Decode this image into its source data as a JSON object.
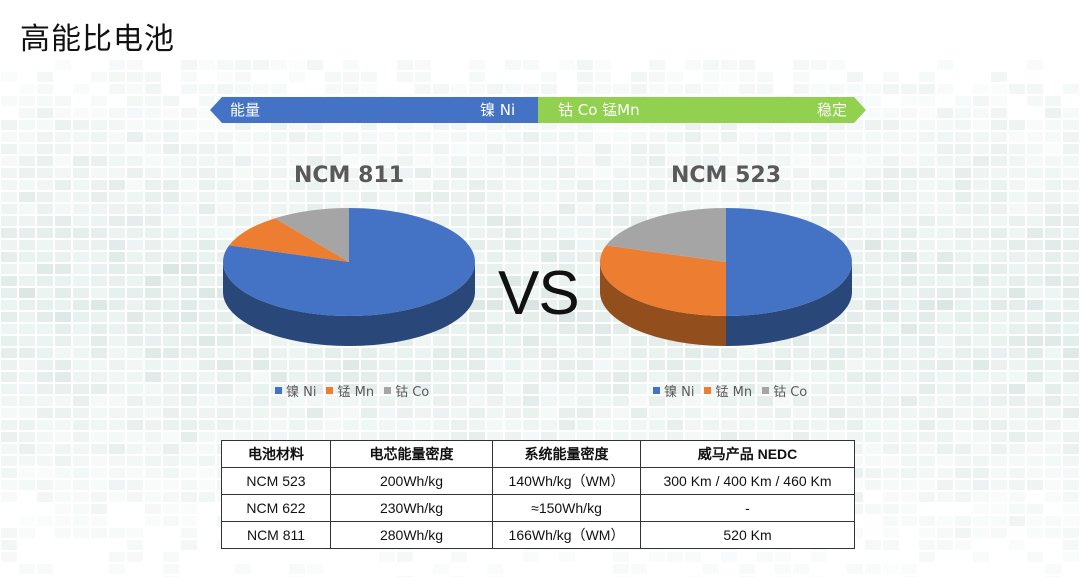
{
  "slide": {
    "title": "高能比电池"
  },
  "arrow": {
    "left_label": "能量",
    "nickel_label": "镍 Ni",
    "middle_label": "钴 Co 锰Mn",
    "right_label": "稳定",
    "blue": "#4472C4",
    "green": "#92D050"
  },
  "vs_text": "VS",
  "colors": {
    "ni": "#4472C4",
    "mn": "#ED7D31",
    "co": "#A5A5A5"
  },
  "chart_data": [
    {
      "type": "pie",
      "title": "NCM 811",
      "categories": [
        "镍 Ni",
        "锰 Mn",
        "钴 Co"
      ],
      "values": [
        80,
        10,
        10
      ],
      "legend": "bottom"
    },
    {
      "type": "pie",
      "title": "NCM 523",
      "categories": [
        "镍 Ni",
        "锰 Mn",
        "钴 Co"
      ],
      "values": [
        50,
        30,
        20
      ],
      "legend": "bottom"
    }
  ],
  "table": {
    "headers": [
      "电池材料",
      "电芯能量密度",
      "系统能量密度",
      "威马产品 NEDC"
    ],
    "rows": [
      [
        "NCM 523",
        "200Wh/kg",
        "140Wh/kg（WM）",
        "300 Km / 400 Km / 460 Km"
      ],
      [
        "NCM 622",
        "230Wh/kg",
        "≈150Wh/kg",
        "-"
      ],
      [
        "NCM 811",
        "280Wh/kg",
        "166Wh/kg（WM）",
        "520 Km"
      ]
    ]
  }
}
